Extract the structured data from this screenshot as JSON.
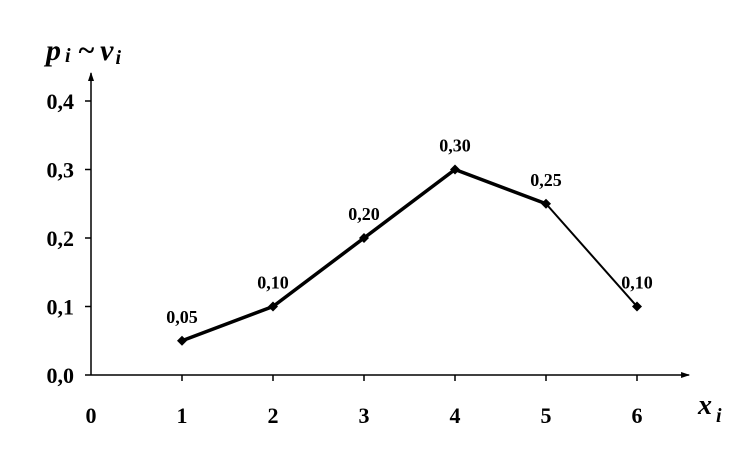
{
  "chart_data": {
    "type": "line",
    "x": [
      1,
      2,
      3,
      4,
      5,
      6
    ],
    "x_ticks": [
      "0",
      "1",
      "2",
      "3",
      "4",
      "5",
      "6"
    ],
    "y_ticks": [
      "0,0",
      "0,1",
      "0,2",
      "0,3",
      "0,4"
    ],
    "ylim": [
      0,
      0.4
    ],
    "xlim": [
      0,
      6.55
    ],
    "series": [
      {
        "values": [
          0.05,
          0.1,
          0.2,
          0.3,
          0.25,
          0.1
        ],
        "labels": [
          "0,05",
          "0,10",
          "0,20",
          "0,30",
          "0,25",
          "0,10"
        ]
      }
    ],
    "ylabel": {
      "p": "p",
      "i1": "i",
      "tilde": "~",
      "nu": "ν",
      "i2": "i"
    },
    "xlabel": {
      "x": "x",
      "i": "i"
    },
    "grid": false,
    "line_color": "#000000"
  }
}
